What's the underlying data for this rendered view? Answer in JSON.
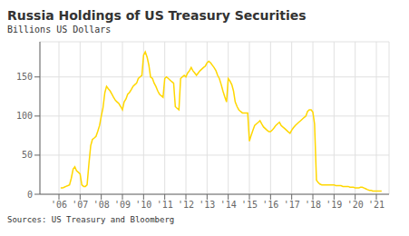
{
  "chart_data": {
    "type": "line",
    "title": "Russia Holdings of US Treasury Securities",
    "subtitle": "Billions US Dollars",
    "annotations": [
      "Sources: US Treasury and Bloomberg"
    ],
    "color": "#FFD700",
    "grid": true,
    "xlim": [
      2005.1,
      2021.6
    ],
    "xticks": [
      {
        "value": 2006,
        "label": "'06"
      },
      {
        "value": 2007,
        "label": "'07"
      },
      {
        "value": 2008,
        "label": "'08"
      },
      {
        "value": 2009,
        "label": "'09"
      },
      {
        "value": 2010,
        "label": "'10"
      },
      {
        "value": 2011,
        "label": "'11"
      },
      {
        "value": 2012,
        "label": "'12"
      },
      {
        "value": 2013,
        "label": "'13"
      },
      {
        "value": 2014,
        "label": "'14"
      },
      {
        "value": 2015,
        "label": "'15"
      },
      {
        "value": 2016,
        "label": "'16"
      },
      {
        "value": 2017,
        "label": "'17"
      },
      {
        "value": 2018,
        "label": "'18"
      },
      {
        "value": 2019,
        "label": "'19"
      },
      {
        "value": 2020,
        "label": "'20"
      },
      {
        "value": 2021,
        "label": "'21"
      }
    ],
    "ylim": [
      0,
      195
    ],
    "yticks": [
      0,
      50,
      100,
      150
    ],
    "x": [
      2006.08,
      2006.17,
      2006.25,
      2006.33,
      2006.42,
      2006.5,
      2006.58,
      2006.67,
      2006.75,
      2006.83,
      2006.92,
      2007.0,
      2007.08,
      2007.17,
      2007.25,
      2007.33,
      2007.42,
      2007.5,
      2007.58,
      2007.67,
      2007.75,
      2007.83,
      2007.92,
      2008.0,
      2008.08,
      2008.17,
      2008.25,
      2008.33,
      2008.42,
      2008.5,
      2008.58,
      2008.67,
      2008.75,
      2008.83,
      2008.92,
      2009.0,
      2009.08,
      2009.17,
      2009.25,
      2009.33,
      2009.42,
      2009.5,
      2009.58,
      2009.67,
      2009.75,
      2009.83,
      2009.92,
      2010.0,
      2010.08,
      2010.17,
      2010.25,
      2010.33,
      2010.42,
      2010.5,
      2010.58,
      2010.67,
      2010.75,
      2010.83,
      2010.92,
      2011.0,
      2011.08,
      2011.17,
      2011.25,
      2011.33,
      2011.42,
      2011.5,
      2011.58,
      2011.67,
      2011.75,
      2011.83,
      2011.92,
      2012.0,
      2012.08,
      2012.17,
      2012.25,
      2012.33,
      2012.42,
      2012.5,
      2012.58,
      2012.67,
      2012.75,
      2012.83,
      2012.92,
      2013.0,
      2013.08,
      2013.17,
      2013.25,
      2013.33,
      2013.42,
      2013.5,
      2013.58,
      2013.67,
      2013.75,
      2013.83,
      2013.92,
      2014.0,
      2014.08,
      2014.17,
      2014.25,
      2014.33,
      2014.42,
      2014.5,
      2014.58,
      2014.67,
      2014.75,
      2014.83,
      2014.92,
      2015.0,
      2015.08,
      2015.17,
      2015.25,
      2015.33,
      2015.42,
      2015.5,
      2015.58,
      2015.67,
      2015.75,
      2015.83,
      2015.92,
      2016.0,
      2016.08,
      2016.17,
      2016.25,
      2016.33,
      2016.42,
      2016.5,
      2016.58,
      2016.67,
      2016.75,
      2016.83,
      2016.92,
      2017.0,
      2017.08,
      2017.17,
      2017.25,
      2017.33,
      2017.42,
      2017.5,
      2017.58,
      2017.67,
      2017.75,
      2017.83,
      2017.92,
      2018.0,
      2018.08,
      2018.17,
      2018.25,
      2018.33,
      2018.42,
      2018.5,
      2018.58,
      2018.67,
      2018.75,
      2018.83,
      2018.92,
      2019.0,
      2019.08,
      2019.17,
      2019.25,
      2019.33,
      2019.42,
      2019.5,
      2019.58,
      2019.67,
      2019.75,
      2019.83,
      2019.92,
      2020.0,
      2020.08,
      2020.17,
      2020.25,
      2020.33,
      2020.42,
      2020.5,
      2020.58,
      2020.67,
      2020.75,
      2020.83,
      2020.92,
      2021.0,
      2021.08,
      2021.17,
      2021.25
    ],
    "values": [
      8,
      8,
      9,
      10,
      11,
      12,
      20,
      32,
      35,
      30,
      28,
      26,
      12,
      10,
      10,
      12,
      40,
      62,
      70,
      72,
      74,
      80,
      88,
      100,
      110,
      130,
      138,
      135,
      132,
      128,
      124,
      120,
      118,
      116,
      112,
      108,
      118,
      122,
      128,
      130,
      134,
      138,
      140,
      142,
      148,
      150,
      152,
      178,
      182,
      175,
      165,
      150,
      148,
      142,
      138,
      132,
      128,
      126,
      124,
      148,
      150,
      148,
      146,
      144,
      142,
      112,
      110,
      108,
      148,
      150,
      152,
      150,
      155,
      158,
      162,
      158,
      155,
      152,
      155,
      158,
      160,
      162,
      164,
      168,
      170,
      168,
      165,
      162,
      158,
      152,
      148,
      140,
      132,
      125,
      118,
      148,
      145,
      140,
      132,
      118,
      112,
      108,
      106,
      104,
      104,
      104,
      104,
      68,
      75,
      82,
      88,
      90,
      92,
      94,
      90,
      86,
      84,
      82,
      80,
      80,
      82,
      85,
      88,
      90,
      92,
      88,
      86,
      84,
      82,
      80,
      78,
      82,
      85,
      88,
      90,
      92,
      94,
      96,
      98,
      100,
      106,
      108,
      108,
      105,
      90,
      18,
      15,
      13,
      12,
      12,
      12,
      12,
      12,
      12,
      12,
      12,
      11,
      11,
      11,
      11,
      10,
      10,
      10,
      10,
      9,
      9,
      9,
      8,
      8,
      8,
      9,
      9,
      8,
      7,
      6,
      5,
      5,
      4,
      4,
      4,
      4,
      4,
      4
    ]
  }
}
